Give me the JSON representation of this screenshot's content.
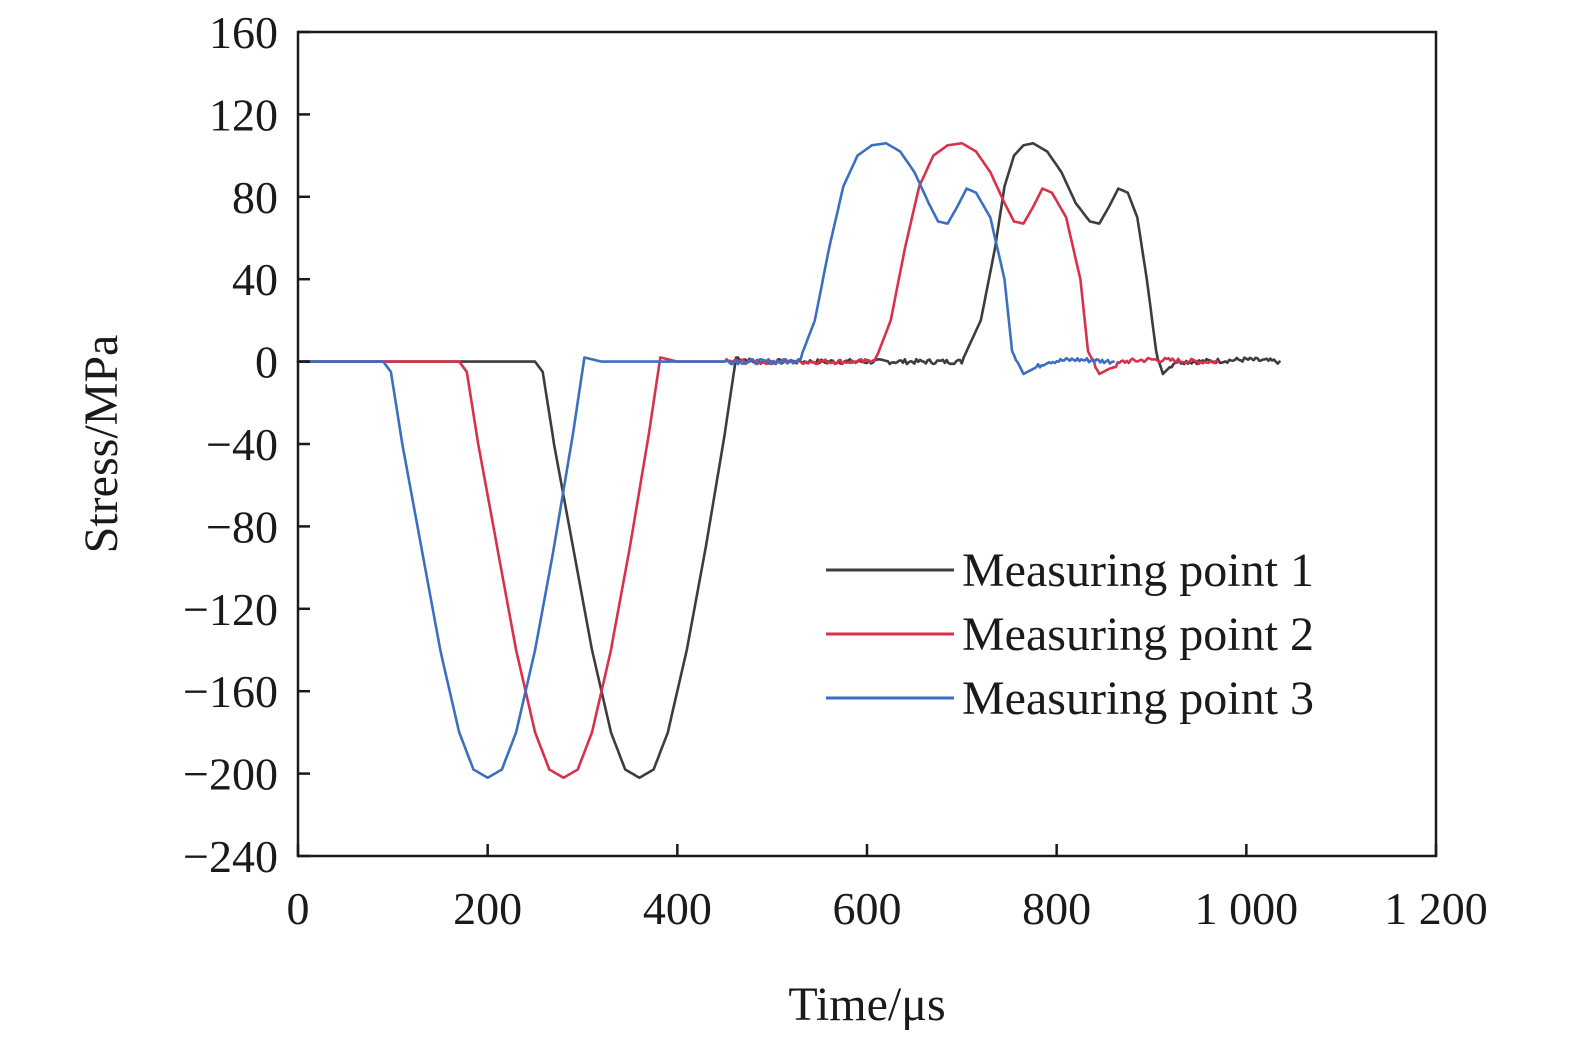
{
  "chart_data": {
    "type": "line",
    "xlabel": "Time/μs",
    "ylabel": "Stress/MPa",
    "xlim": [
      0,
      1200
    ],
    "ylim": [
      -240,
      160
    ],
    "x_ticks": [
      0,
      200,
      400,
      600,
      800,
      1000,
      1200
    ],
    "x_tick_labels": [
      "0",
      "200",
      "400",
      "600",
      "800",
      "1 000",
      "1 200"
    ],
    "y_ticks": [
      160,
      120,
      80,
      40,
      0,
      -40,
      -80,
      -120,
      -160,
      -200,
      -240
    ],
    "y_tick_labels": [
      "160",
      "120",
      "80",
      "40",
      "0",
      "−40",
      "−80",
      "−120",
      "−160",
      "−200",
      "−240"
    ],
    "grid": false,
    "legend_position": "lower-right",
    "series": [
      {
        "name": "Measuring point 1",
        "color": "#3d3d3d",
        "x": [
          0,
          100,
          200,
          250,
          258,
          270,
          290,
          310,
          330,
          345,
          360,
          375,
          390,
          410,
          430,
          450,
          462,
          480,
          550,
          700,
          720,
          735,
          745,
          755,
          765,
          775,
          790,
          805,
          820,
          835,
          845,
          855,
          865,
          875,
          885,
          895,
          905,
          912,
          925,
          950,
          1000,
          1035
        ],
        "y": [
          0,
          0,
          0,
          0,
          -5,
          -40,
          -90,
          -140,
          -180,
          -198,
          -202,
          -198,
          -180,
          -140,
          -90,
          -35,
          2,
          0,
          0,
          0,
          20,
          55,
          85,
          100,
          105,
          106,
          102,
          92,
          77,
          68,
          67,
          75,
          84,
          82,
          70,
          40,
          5,
          -6,
          0,
          0,
          1,
          0
        ]
      },
      {
        "name": "Measuring point 2",
        "color": "#d7314b",
        "x": [
          0,
          100,
          150,
          170,
          178,
          190,
          210,
          230,
          250,
          265,
          280,
          295,
          310,
          330,
          350,
          370,
          382,
          400,
          500,
          600,
          610,
          625,
          640,
          655,
          670,
          685,
          700,
          715,
          730,
          745,
          755,
          765,
          775,
          785,
          795,
          810,
          825,
          833,
          845,
          870,
          900,
          950,
          970
        ],
        "y": [
          0,
          0,
          0,
          0,
          -5,
          -40,
          -90,
          -140,
          -180,
          -198,
          -202,
          -198,
          -180,
          -140,
          -90,
          -35,
          2,
          0,
          0,
          0,
          2,
          20,
          55,
          85,
          100,
          105,
          106,
          102,
          92,
          77,
          68,
          67,
          75,
          84,
          82,
          70,
          40,
          5,
          -6,
          0,
          1,
          0,
          0
        ]
      },
      {
        "name": "Measuring point 3",
        "color": "#3b6fbf",
        "x": [
          0,
          50,
          90,
          98,
          110,
          130,
          150,
          170,
          185,
          200,
          215,
          230,
          250,
          270,
          290,
          302,
          320,
          400,
          520,
          530,
          545,
          560,
          575,
          590,
          605,
          620,
          635,
          650,
          665,
          675,
          685,
          695,
          705,
          715,
          730,
          745,
          753,
          765,
          790,
          820,
          860
        ],
        "y": [
          0,
          0,
          0,
          -5,
          -40,
          -90,
          -140,
          -180,
          -198,
          -202,
          -198,
          -180,
          -140,
          -90,
          -35,
          2,
          0,
          0,
          0,
          2,
          20,
          55,
          85,
          100,
          105,
          106,
          102,
          92,
          77,
          68,
          67,
          75,
          84,
          82,
          70,
          40,
          5,
          -6,
          0,
          1,
          0
        ]
      }
    ]
  }
}
